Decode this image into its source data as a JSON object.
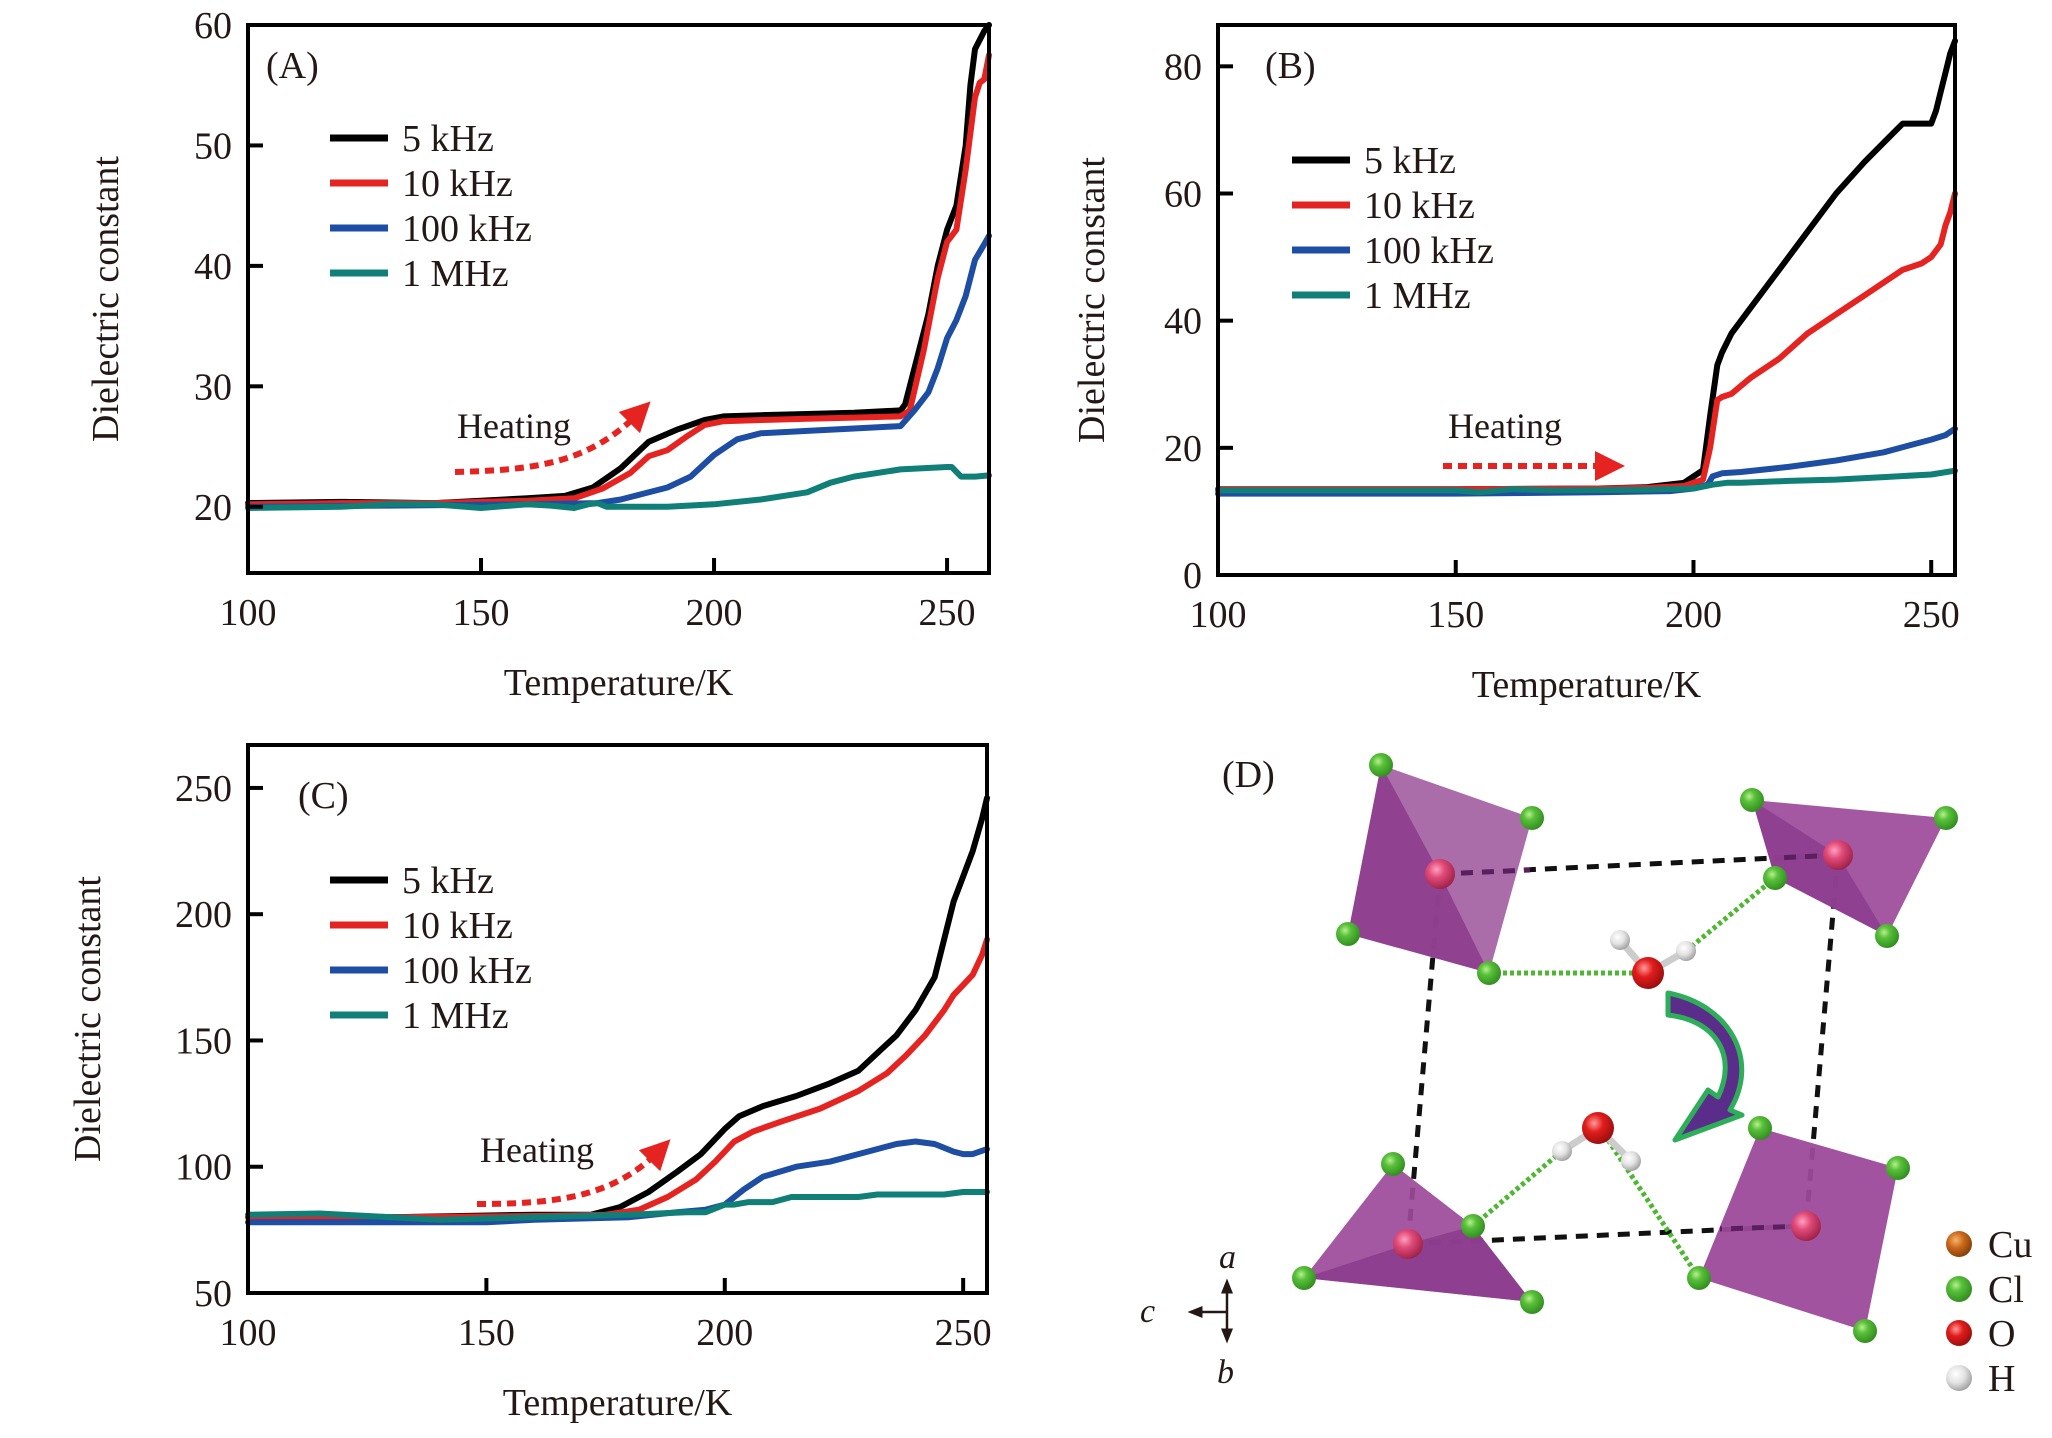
{
  "figure": {
    "panels": [
      "A",
      "B",
      "C",
      "D"
    ]
  },
  "colors": {
    "5 kHz": "#000000",
    "10 kHz": "#e52421",
    "100 kHz": "#1d4ea3",
    "1 MHz": "#0f7f78",
    "heating_arrow": "#e52421",
    "octahedron": "#9c4a9a",
    "chlorine": "#4cb82f",
    "copper_center": "#d9386a",
    "oxygen": "#e01a1a",
    "hydrogen": "#e6e6e6",
    "copper_legend": "#c8671a",
    "rotation_arrow_fill": "#5b2d8a",
    "rotation_arrow_edge": "#2fae5a"
  },
  "chart_data": [
    {
      "panel": "A",
      "type": "line",
      "label": "(A)",
      "title": "",
      "xlabel": "Temperature/K",
      "ylabel": "Dielectric constant",
      "xlim": [
        100,
        259
      ],
      "ylim": [
        14.5,
        60
      ],
      "xticks": [
        100,
        150,
        200,
        250
      ],
      "yticks": [
        20,
        30,
        40,
        50,
        60
      ],
      "grid": false,
      "legend": "upper-left",
      "annotation": {
        "text": "Heating",
        "arrow": "curved-up-right"
      },
      "series": [
        {
          "name": "5 kHz",
          "x": [
            100,
            120,
            140,
            150,
            160,
            168,
            174,
            180,
            186,
            192,
            198,
            202,
            210,
            220,
            230,
            240,
            241,
            244,
            246,
            248,
            250,
            252,
            254,
            255,
            256,
            258,
            259
          ],
          "y": [
            20.3,
            20.4,
            20.3,
            20.5,
            20.7,
            20.9,
            21.6,
            23.2,
            25.4,
            26.4,
            27.2,
            27.5,
            27.6,
            27.7,
            27.8,
            28.0,
            28.5,
            33,
            36,
            40,
            43,
            45,
            50,
            55,
            58,
            59.5,
            60
          ]
        },
        {
          "name": "10 kHz",
          "x": [
            100,
            120,
            140,
            150,
            160,
            170,
            176,
            182,
            186,
            190,
            194,
            198,
            202,
            210,
            220,
            230,
            240,
            242,
            245,
            248,
            250,
            252,
            254,
            256,
            257,
            258,
            259
          ],
          "y": [
            20.2,
            20.3,
            20.3,
            20.4,
            20.5,
            20.7,
            21.5,
            22.8,
            24.2,
            24.7,
            25.8,
            26.8,
            27.1,
            27.2,
            27.3,
            27.4,
            27.5,
            28,
            33,
            39,
            42,
            43,
            48,
            54,
            55.2,
            55.5,
            57.5
          ]
        },
        {
          "name": "100 kHz",
          "x": [
            100,
            130,
            160,
            175,
            180,
            185,
            190,
            195,
            200,
            205,
            210,
            220,
            230,
            240,
            243,
            246,
            248,
            250,
            252,
            254,
            256,
            258,
            259
          ],
          "y": [
            20.0,
            20.1,
            20.2,
            20.3,
            20.6,
            21.1,
            21.6,
            22.5,
            24.3,
            25.6,
            26.1,
            26.3,
            26.5,
            26.7,
            28,
            29.5,
            31.5,
            34,
            35.5,
            37.5,
            40.5,
            41.8,
            42.5
          ]
        },
        {
          "name": "1 MHz",
          "x": [
            100,
            120,
            130,
            140,
            150,
            160,
            165,
            170,
            173,
            175,
            177,
            180,
            190,
            200,
            210,
            220,
            225,
            230,
            240,
            250,
            251,
            253,
            256,
            259
          ],
          "y": [
            19.9,
            20.0,
            20.2,
            20.2,
            19.9,
            20.2,
            20.1,
            19.9,
            20.2,
            20.3,
            20.0,
            20.0,
            20.0,
            20.2,
            20.6,
            21.2,
            22.0,
            22.5,
            23.1,
            23.3,
            23.3,
            22.5,
            22.5,
            22.6
          ]
        }
      ]
    },
    {
      "panel": "B",
      "type": "line",
      "label": "(B)",
      "title": "",
      "xlabel": "Temperature/K",
      "ylabel": "Dielectric constant",
      "xlim": [
        100,
        255
      ],
      "ylim": [
        0,
        86.5
      ],
      "xticks": [
        100,
        150,
        200,
        250
      ],
      "yticks": [
        0,
        20,
        40,
        60,
        80
      ],
      "grid": false,
      "legend": "upper-left",
      "annotation": {
        "text": "Heating",
        "arrow": "straight-right"
      },
      "series": [
        {
          "name": "5 kHz",
          "x": [
            100,
            150,
            180,
            190,
            198,
            202,
            203.5,
            205,
            206,
            208,
            212,
            218,
            224,
            230,
            236,
            240,
            244,
            248,
            250,
            251,
            252,
            253,
            254,
            255
          ],
          "y": [
            13.5,
            13.5,
            13.6,
            13.8,
            14.5,
            16.5,
            25,
            33,
            35,
            38,
            42,
            48,
            54,
            60,
            65,
            68,
            71,
            71,
            71,
            73,
            76,
            79,
            82,
            84
          ]
        },
        {
          "name": "10 kHz",
          "x": [
            100,
            150,
            180,
            190,
            198,
            202,
            203.5,
            205,
            206,
            208,
            212,
            218,
            224,
            230,
            236,
            240,
            244,
            248,
            250,
            252,
            253,
            254,
            255
          ],
          "y": [
            13.5,
            13.5,
            13.6,
            13.7,
            14.0,
            15.0,
            20,
            27.5,
            28,
            28.5,
            31,
            34,
            38,
            41,
            44,
            46,
            48,
            49,
            50,
            52,
            55,
            57,
            60
          ]
        },
        {
          "name": "100 kHz",
          "x": [
            100,
            150,
            180,
            195,
            200,
            203,
            204,
            206,
            210,
            220,
            230,
            240,
            245,
            250,
            253,
            255
          ],
          "y": [
            12.8,
            12.8,
            13.0,
            13.2,
            13.6,
            14.2,
            15.5,
            16.0,
            16.2,
            17.0,
            18.0,
            19.3,
            20.3,
            21.3,
            22.0,
            23.0
          ]
        },
        {
          "name": "1 MHz",
          "x": [
            100,
            150,
            155,
            162,
            170,
            190,
            200,
            204,
            207,
            210,
            220,
            230,
            240,
            250,
            255
          ],
          "y": [
            13.3,
            13.3,
            13.0,
            13.5,
            13.3,
            13.4,
            13.6,
            14.2,
            14.5,
            14.5,
            14.8,
            15.0,
            15.4,
            15.8,
            16.4
          ]
        }
      ]
    },
    {
      "panel": "C",
      "type": "line",
      "label": "(C)",
      "title": "",
      "xlabel": "Temperature/K",
      "ylabel": "Dielectric constant",
      "xlim": [
        100,
        255
      ],
      "ylim": [
        50,
        267
      ],
      "xticks": [
        100,
        150,
        200,
        250
      ],
      "yticks": [
        50,
        100,
        150,
        200,
        250
      ],
      "grid": false,
      "legend": "upper-left",
      "annotation": {
        "text": "Heating",
        "arrow": "curved-up-right"
      },
      "series": [
        {
          "name": "5 kHz",
          "x": [
            100,
            130,
            160,
            172,
            178,
            184,
            190,
            195,
            200,
            203,
            208,
            215,
            222,
            228,
            232,
            236,
            240,
            244,
            246,
            248,
            250,
            252,
            254,
            255
          ],
          "y": [
            80,
            80,
            81,
            81,
            84,
            90,
            98,
            105,
            115,
            120,
            124,
            128,
            133,
            138,
            145,
            152,
            162,
            175,
            190,
            205,
            215,
            225,
            238,
            246
          ]
        },
        {
          "name": "10 kHz",
          "x": [
            100,
            130,
            160,
            175,
            182,
            188,
            194,
            198,
            202,
            206,
            212,
            220,
            228,
            234,
            238,
            242,
            246,
            248,
            250,
            252,
            254,
            255
          ],
          "y": [
            80,
            80,
            80.5,
            81,
            83,
            88,
            95,
            102,
            110,
            114,
            118,
            123,
            130,
            137,
            144,
            152,
            162,
            168,
            172,
            176,
            184,
            190
          ]
        },
        {
          "name": "100 kHz",
          "x": [
            100,
            130,
            150,
            160,
            180,
            190,
            196,
            200,
            204,
            208,
            215,
            222,
            230,
            236,
            240,
            244,
            248,
            250,
            252,
            255
          ],
          "y": [
            78,
            78,
            78,
            79,
            80,
            82,
            83,
            85,
            91,
            96,
            100,
            102,
            106,
            109,
            110,
            109,
            106,
            105,
            105,
            107
          ]
        },
        {
          "name": "1 MHz",
          "x": [
            100,
            115,
            130,
            140,
            160,
            180,
            192,
            196,
            200,
            202,
            205,
            210,
            214,
            228,
            232,
            246,
            250,
            255
          ],
          "y": [
            81,
            81.5,
            80,
            79,
            80,
            81,
            82,
            82,
            85,
            85,
            86,
            86,
            88,
            88,
            89,
            89,
            90,
            90
          ]
        }
      ]
    }
  ],
  "panel_d": {
    "label": "(D)",
    "legend": [
      {
        "symbol": "Cu",
        "color": "#c8671a"
      },
      {
        "symbol": "Cl",
        "color": "#4cb82f"
      },
      {
        "symbol": "O",
        "color": "#e01a1a"
      },
      {
        "symbol": "H",
        "color": "#e6e6e6"
      }
    ],
    "axes": {
      "a": "a",
      "b": "b",
      "c": "c"
    }
  }
}
